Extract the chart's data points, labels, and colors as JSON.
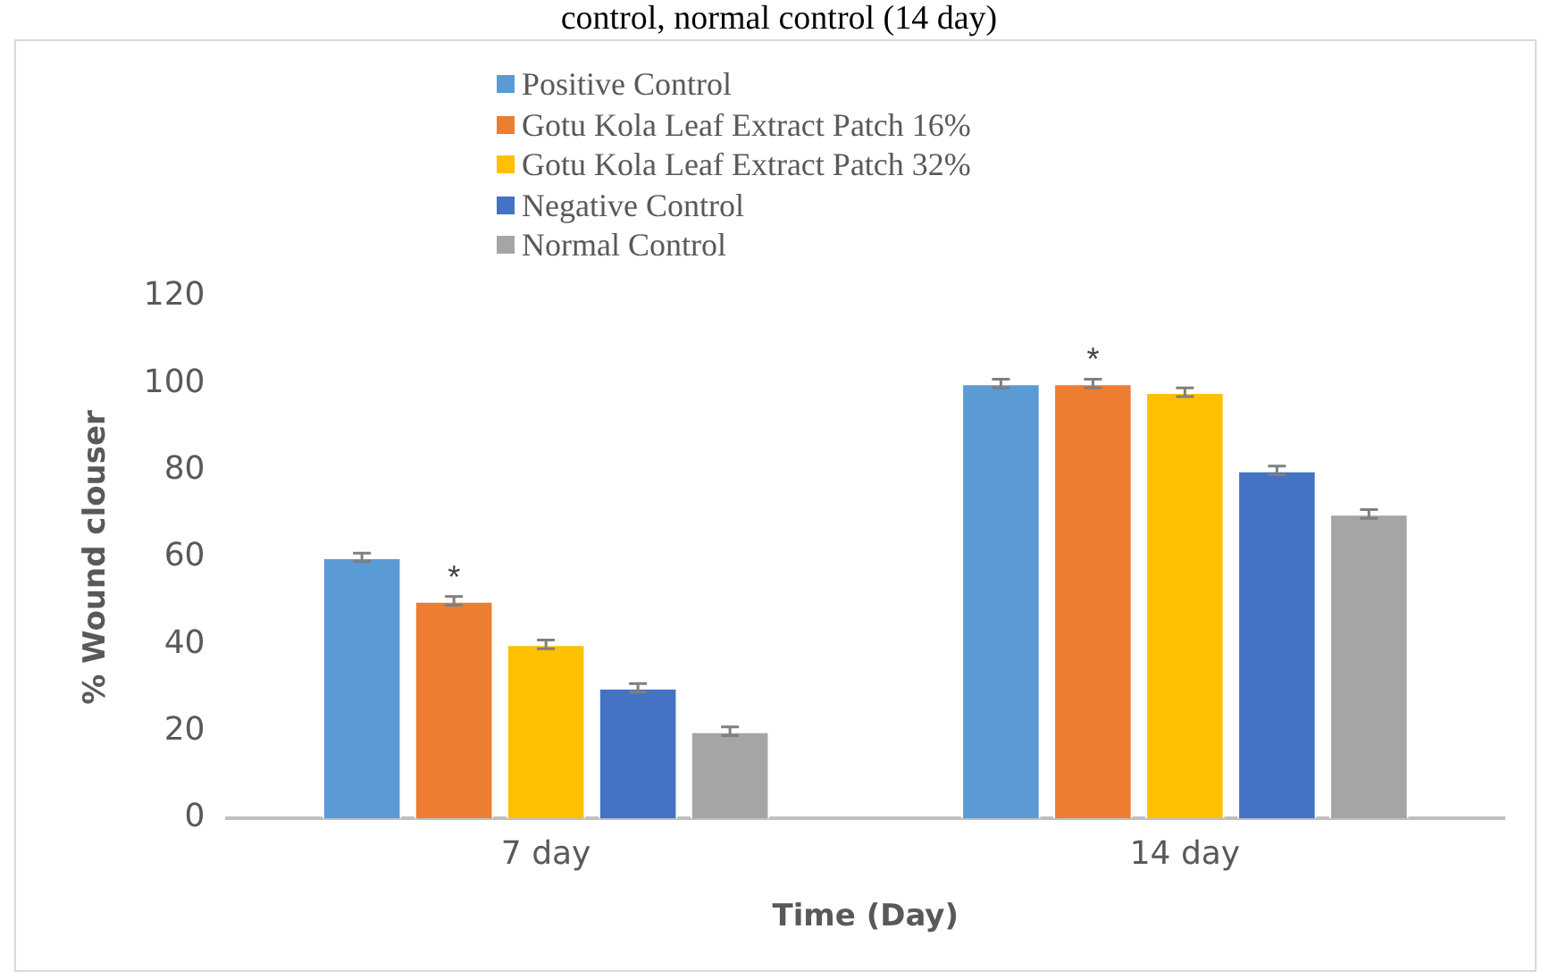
{
  "chart_data": {
    "type": "bar",
    "title": "control, normal control (14 day)",
    "xlabel": "Time (Day)",
    "ylabel": "% Wound clouser",
    "categories": [
      "7 day",
      "14 day"
    ],
    "series": [
      {
        "name": "Positive Control",
        "color": "#5b9bd5",
        "values": [
          60,
          100
        ],
        "errors": [
          1,
          1
        ]
      },
      {
        "name": "Gotu Kola Leaf Extract Patch 16%",
        "color": "#ed7d31",
        "values": [
          50,
          100
        ],
        "errors": [
          1,
          1
        ]
      },
      {
        "name": "Gotu Kola Leaf Extract Patch 32%",
        "color": "#ffc000",
        "values": [
          40,
          98
        ],
        "errors": [
          1,
          1
        ]
      },
      {
        "name": "Negative Control",
        "color": "#4472c4",
        "values": [
          30,
          80
        ],
        "errors": [
          1,
          1
        ]
      },
      {
        "name": "Normal Control",
        "color": "#a5a5a5",
        "values": [
          20,
          70
        ],
        "errors": [
          1,
          1
        ]
      }
    ],
    "ylim": [
      0,
      120
    ],
    "yticks": [
      0,
      20,
      40,
      60,
      80,
      100,
      120
    ],
    "grid": false,
    "legend": "top",
    "annotations": [
      "*",
      "*"
    ]
  }
}
